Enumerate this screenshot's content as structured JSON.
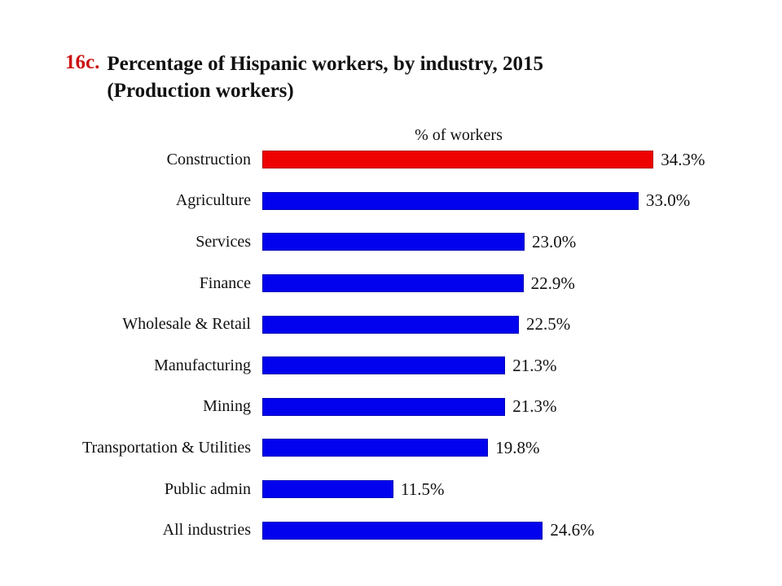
{
  "page": {
    "background": "#ffffff"
  },
  "header": {
    "figure_number": "16c.",
    "figure_number_color": "#cc1414",
    "title_line1": "Percentage of Hispanic workers, by industry, 2015",
    "title_line2": "(Production workers)"
  },
  "chart_data": {
    "type": "bar",
    "orientation": "horizontal",
    "axis_title": "% of workers",
    "categories": [
      "Construction",
      "Agriculture",
      "Services",
      "Finance",
      "Wholesale & Retail",
      "Manufacturing",
      "Mining",
      "Transportation & Utilities",
      "Public admin",
      "All industries"
    ],
    "values": [
      34.3,
      33.0,
      23.0,
      22.9,
      22.5,
      21.3,
      21.3,
      19.8,
      11.5,
      24.6
    ],
    "value_labels": [
      "34.3%",
      "33.0%",
      "23.0%",
      "22.9%",
      "22.5%",
      "21.3%",
      "21.3%",
      "19.8%",
      "11.5%",
      "24.6%"
    ],
    "bar_colors": [
      "#ee0202",
      "#0202ee",
      "#0202ee",
      "#0202ee",
      "#0202ee",
      "#0202ee",
      "#0202ee",
      "#0202ee",
      "#0202ee",
      "#0202ee"
    ],
    "highlight_color": "#ee0202",
    "default_color": "#0202ee",
    "xlim": [
      0,
      38
    ],
    "grid": false,
    "legend": false,
    "data_labels": true
  }
}
